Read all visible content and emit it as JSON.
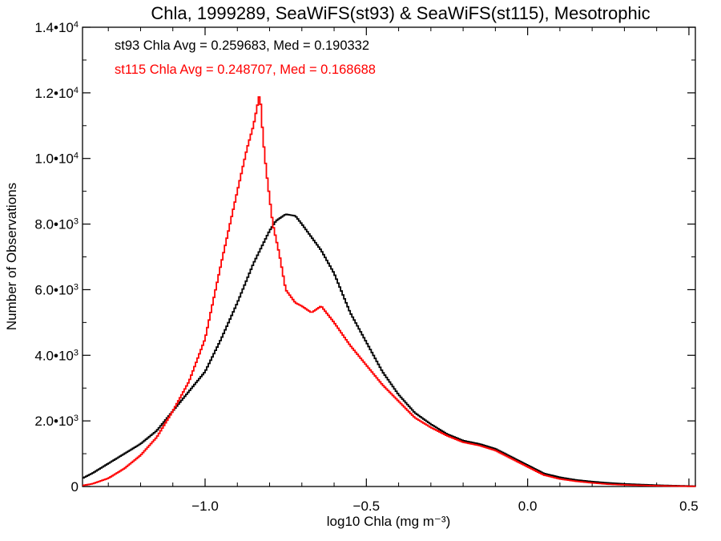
{
  "chart_data": {
    "type": "line",
    "title": "Chla, 1999289, SeaWiFS(st93) & SeaWiFS(st115), Mesotrophic",
    "xlabel": "log10 Chla (mg m⁻³)",
    "ylabel": "Number of Observations",
    "xlim": [
      -1.38,
      0.52
    ],
    "ylim": [
      0,
      14000
    ],
    "x_ticks": [
      {
        "value": -1.0,
        "label": "−1.0"
      },
      {
        "value": -0.5,
        "label": "−0.5"
      },
      {
        "value": 0.0,
        "label": "0.0"
      },
      {
        "value": 0.5,
        "label": "0.5"
      }
    ],
    "y_ticks": [
      {
        "value": 0,
        "mant": "0",
        "exp": ""
      },
      {
        "value": 2000,
        "mant": "2.0•10",
        "exp": "3"
      },
      {
        "value": 4000,
        "mant": "4.0•10",
        "exp": "3"
      },
      {
        "value": 6000,
        "mant": "6.0•10",
        "exp": "3"
      },
      {
        "value": 8000,
        "mant": "8.0•10",
        "exp": "3"
      },
      {
        "value": 10000,
        "mant": "1.0•10",
        "exp": "4"
      },
      {
        "value": 12000,
        "mant": "1.2•10",
        "exp": "4"
      },
      {
        "value": 14000,
        "mant": "1.4•10",
        "exp": "4"
      }
    ],
    "grid": false,
    "legend_position": "top-left",
    "series": [
      {
        "name": "st93 Chla Avg = 0.259683, Med = 0.190332",
        "color": "#000000",
        "x": [
          -1.38,
          -1.35,
          -1.3,
          -1.25,
          -1.2,
          -1.15,
          -1.1,
          -1.05,
          -1.0,
          -0.95,
          -0.9,
          -0.85,
          -0.8,
          -0.78,
          -0.75,
          -0.72,
          -0.7,
          -0.67,
          -0.64,
          -0.6,
          -0.55,
          -0.5,
          -0.45,
          -0.4,
          -0.35,
          -0.3,
          -0.25,
          -0.2,
          -0.15,
          -0.1,
          -0.05,
          0.0,
          0.05,
          0.1,
          0.15,
          0.2,
          0.25,
          0.3,
          0.4,
          0.52
        ],
        "y": [
          250,
          400,
          700,
          1000,
          1300,
          1700,
          2300,
          2900,
          3500,
          4500,
          5600,
          6800,
          7800,
          8100,
          8300,
          8250,
          8000,
          7600,
          7200,
          6500,
          5300,
          4400,
          3500,
          2800,
          2250,
          1900,
          1600,
          1400,
          1300,
          1150,
          900,
          650,
          400,
          280,
          200,
          150,
          110,
          80,
          40,
          10
        ]
      },
      {
        "name": "st115 Chla Avg = 0.248707, Med = 0.168688",
        "color": "#ff0000",
        "x": [
          -1.38,
          -1.35,
          -1.3,
          -1.25,
          -1.2,
          -1.15,
          -1.1,
          -1.05,
          -1.0,
          -0.95,
          -0.9,
          -0.87,
          -0.85,
          -0.83,
          -0.82,
          -0.81,
          -0.79,
          -0.77,
          -0.75,
          -0.72,
          -0.7,
          -0.67,
          -0.64,
          -0.6,
          -0.55,
          -0.5,
          -0.45,
          -0.4,
          -0.35,
          -0.3,
          -0.25,
          -0.2,
          -0.15,
          -0.1,
          -0.05,
          0.0,
          0.05,
          0.1,
          0.15,
          0.2,
          0.25,
          0.3,
          0.4,
          0.52
        ],
        "y": [
          30,
          80,
          250,
          550,
          950,
          1500,
          2300,
          3200,
          4500,
          6800,
          9000,
          10300,
          11000,
          12000,
          10600,
          9600,
          8000,
          7100,
          6000,
          5600,
          5500,
          5300,
          5500,
          5000,
          4300,
          3700,
          3100,
          2600,
          2100,
          1800,
          1550,
          1350,
          1250,
          1100,
          850,
          600,
          350,
          230,
          160,
          110,
          70,
          50,
          20,
          5
        ]
      }
    ]
  }
}
